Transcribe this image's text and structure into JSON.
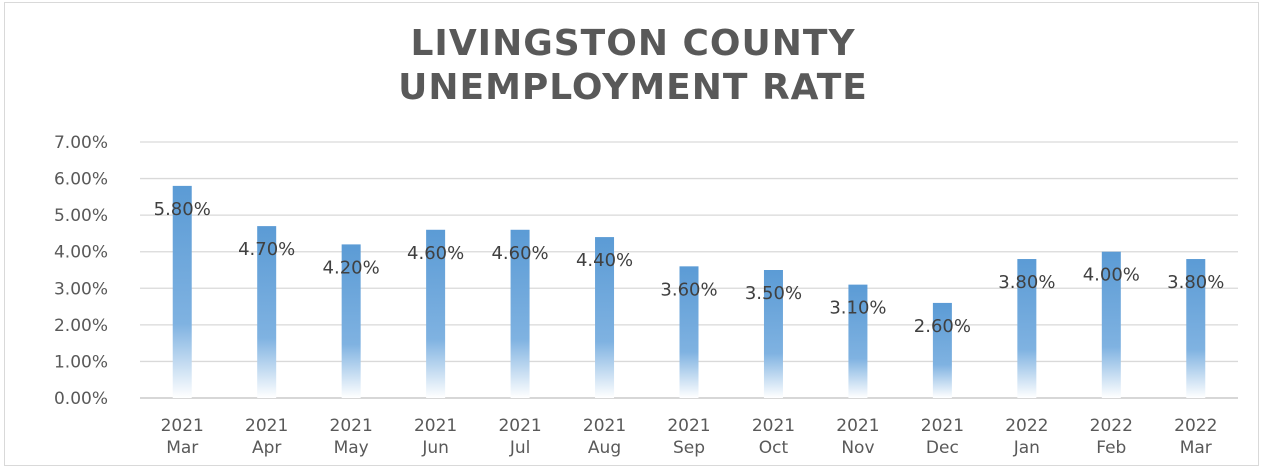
{
  "chart_data": {
    "type": "bar",
    "title": "LIVINGSTON COUNTY UNEMPLOYMENT RATE",
    "title_lines": [
      "LIVINGSTON COUNTY",
      "UNEMPLOYMENT RATE"
    ],
    "categories": [
      [
        "2021",
        "Mar"
      ],
      [
        "2021",
        "Apr"
      ],
      [
        "2021",
        "May"
      ],
      [
        "2021",
        "Jun"
      ],
      [
        "2021",
        "Jul"
      ],
      [
        "2021",
        "Aug"
      ],
      [
        "2021",
        "Sep"
      ],
      [
        "2021",
        "Oct"
      ],
      [
        "2021",
        "Nov"
      ],
      [
        "2021",
        "Dec"
      ],
      [
        "2022",
        "Jan"
      ],
      [
        "2022",
        "Feb"
      ],
      [
        "2022",
        "Mar"
      ]
    ],
    "values": [
      5.8,
      4.7,
      4.2,
      4.6,
      4.6,
      4.4,
      3.6,
      3.5,
      3.1,
      2.6,
      3.8,
      4.0,
      3.8
    ],
    "data_labels": [
      "5.80%",
      "4.70%",
      "4.20%",
      "4.60%",
      "4.60%",
      "4.40%",
      "3.60%",
      "3.50%",
      "3.10%",
      "2.60%",
      "3.80%",
      "4.00%",
      "3.80%"
    ],
    "y_ticks": [
      "0.00%",
      "1.00%",
      "2.00%",
      "3.00%",
      "4.00%",
      "5.00%",
      "6.00%",
      "7.00%"
    ],
    "ylim": [
      0,
      7
    ],
    "xlabel": "",
    "ylabel": "",
    "grid": true,
    "legend": "none",
    "colors": {
      "bar": "#5b9bd5",
      "grid": "#d9d9d9",
      "text": "#595959"
    }
  }
}
